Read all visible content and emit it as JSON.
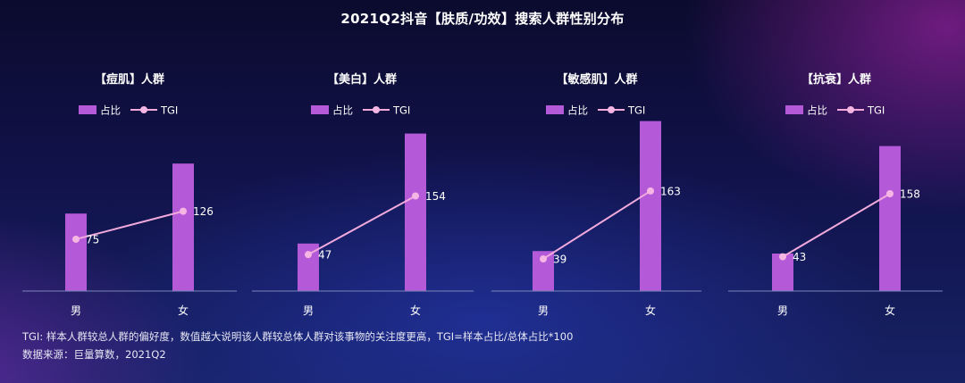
{
  "title": "2021Q2抖音【肤质/功效】搜索人群性别分布",
  "legend": {
    "bar_label": "占比",
    "line_label": "TGI"
  },
  "colors": {
    "bar": "#b45ad8",
    "line": "#f2aadd",
    "point": "#f6b6e4",
    "axis": "#7a86b8"
  },
  "chart_data": [
    {
      "type": "bar+line",
      "title": "【痘肌】人群",
      "categories": [
        "男",
        "女"
      ],
      "series": [
        {
          "name": "占比",
          "values": [
            0.31,
            0.51
          ]
        },
        {
          "name": "TGI",
          "values": [
            75,
            126
          ]
        }
      ]
    },
    {
      "type": "bar+line",
      "title": "【美白】人群",
      "categories": [
        "男",
        "女"
      ],
      "series": [
        {
          "name": "占比",
          "values": [
            0.19,
            0.63
          ]
        },
        {
          "name": "TGI",
          "values": [
            47,
            154
          ]
        }
      ]
    },
    {
      "type": "bar+line",
      "title": "【敏感肌】人群",
      "categories": [
        "男",
        "女"
      ],
      "series": [
        {
          "name": "占比",
          "values": [
            0.16,
            0.68
          ]
        },
        {
          "name": "TGI",
          "values": [
            39,
            163
          ]
        }
      ]
    },
    {
      "type": "bar+line",
      "title": "【抗衰】人群",
      "categories": [
        "男",
        "女"
      ],
      "series": [
        {
          "name": "占比",
          "values": [
            0.15,
            0.58
          ]
        },
        {
          "name": "TGI",
          "values": [
            43,
            158
          ]
        }
      ]
    }
  ],
  "footnotes": {
    "tgi_note": "TGI: 样本人群较总人群的偏好度，数值越大说明该人群较总体人群对该事物的关注度更高，TGI=样本占比/总体占比*100",
    "source": "数据来源：巨量算数，2021Q2"
  }
}
